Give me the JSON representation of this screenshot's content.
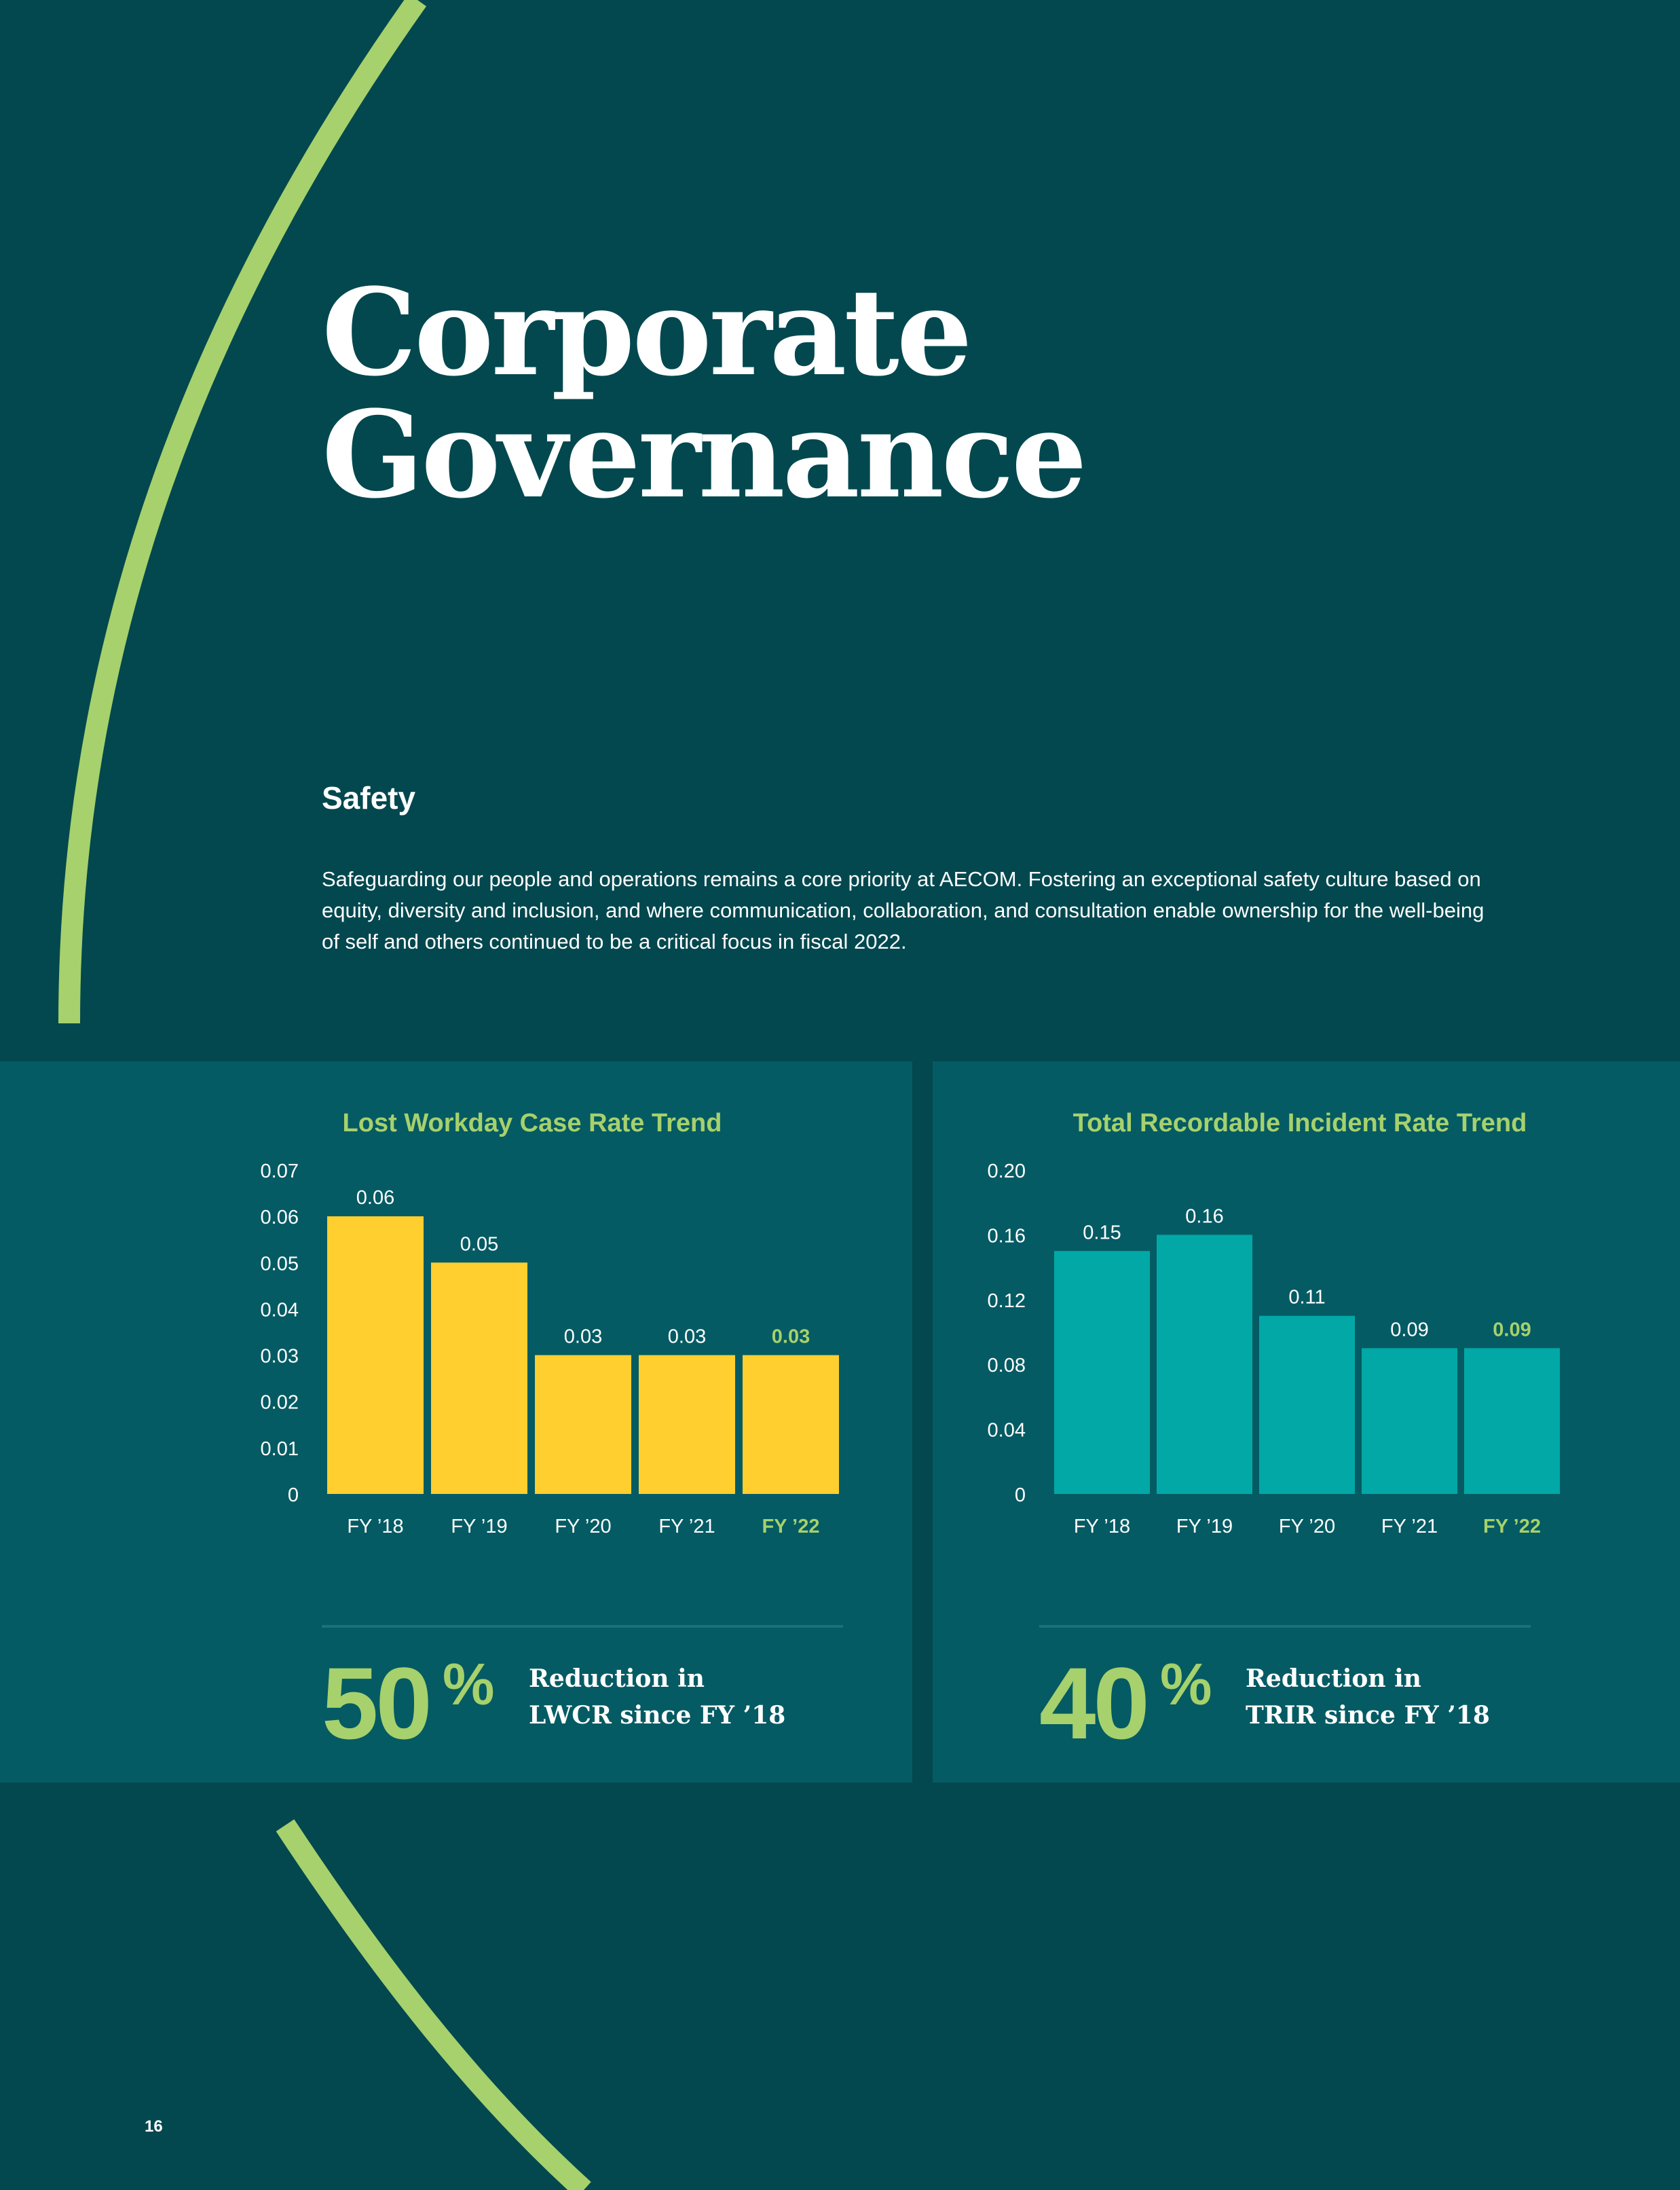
{
  "page": {
    "title_line1": "Corporate",
    "title_line2": "Governance",
    "section_heading": "Safety",
    "intro": "Safeguarding our people and operations remains a core priority at AECOM. Fostering an exceptional safety culture based on equity, diversity and inclusion, and where communication, collaboration, and consultation enable ownership for the well-being of self and others continued to be a critical focus in fiscal 2022.",
    "page_number": "16"
  },
  "colors": {
    "background": "#03484f",
    "panel": "#055b63",
    "accent_green": "#a6d16c",
    "lwcr_bar": "#fecf2e",
    "trir_bar": "#01a8a6"
  },
  "chart_data": [
    {
      "type": "bar",
      "title": "Lost Workday Case Rate Trend",
      "categories": [
        "FY ’18",
        "FY ’19",
        "FY ’20",
        "FY ’21",
        "FY ’22"
      ],
      "values": [
        0.06,
        0.05,
        0.03,
        0.03,
        0.03
      ],
      "value_labels": [
        "0.06",
        "0.05",
        "0.03",
        "0.03",
        "0.03"
      ],
      "highlight_index": 4,
      "yticks": [
        "0",
        "0.01",
        "0.02",
        "0.03",
        "0.04",
        "0.05",
        "0.06",
        "0.07"
      ],
      "ylim": [
        0,
        0.07
      ],
      "xlabel": "",
      "ylabel": "",
      "stat": {
        "number": "50",
        "unit": "%",
        "caption_line1": "Reduction in",
        "caption_line2": "LWCR since FY ’18"
      }
    },
    {
      "type": "bar",
      "title": "Total Recordable Incident Rate Trend",
      "categories": [
        "FY ’18",
        "FY ’19",
        "FY ’20",
        "FY ’21",
        "FY ’22"
      ],
      "values": [
        0.15,
        0.16,
        0.11,
        0.09,
        0.09
      ],
      "value_labels": [
        "0.15",
        "0.16",
        "0.11",
        "0.09",
        "0.09"
      ],
      "highlight_index": 4,
      "yticks": [
        "0",
        "0.04",
        "0.08",
        "0.12",
        "0.16",
        "0.20"
      ],
      "ylim": [
        0,
        0.2
      ],
      "xlabel": "",
      "ylabel": "",
      "stat": {
        "number": "40",
        "unit": "%",
        "caption_line1": "Reduction in",
        "caption_line2": "TRIR since FY ’18"
      }
    }
  ]
}
